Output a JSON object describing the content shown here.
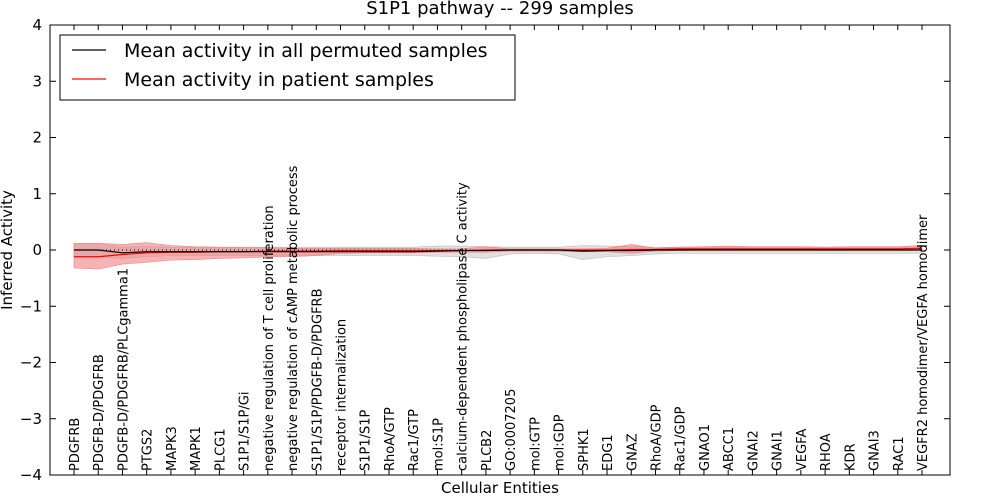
{
  "chart_data": {
    "type": "line",
    "title": "S1P1 pathway -- 299 samples",
    "xlabel": "Cellular Entities",
    "ylabel": "Inferred Activity",
    "ylim": [
      -4,
      4
    ],
    "yticks": [
      -4,
      -3,
      -2,
      -1,
      0,
      1,
      2,
      3,
      4
    ],
    "ytick_labels": [
      "−4",
      "−3",
      "−2",
      "−1",
      "0",
      "1",
      "2",
      "3",
      "4"
    ],
    "legend_position": "top-left",
    "categories": [
      "PDGFRB",
      "PDGFB-D/PDGFRB",
      "PDGFB-D/PDGFRB/PLCgamma1",
      "PTGS2",
      "MAPK3",
      "MAPK1",
      "PLCG1",
      "S1P1/S1P/Gi",
      "negative regulation of T cell proliferation",
      "negative regulation of cAMP metabolic process",
      "S1P1/S1P/PDGFB-D/PDGFRB",
      "receptor internalization",
      "S1P1/S1P",
      "RhoA/GTP",
      "Rac1/GTP",
      "mol:S1P",
      "calcium-dependent phospholipase C activity",
      "PLCB2",
      "GO:0007205",
      "mol:GTP",
      "mol:GDP",
      "SPHK1",
      "EDG1",
      "GNAZ",
      "RhoA/GDP",
      "Rac1/GDP",
      "GNAO1",
      "ABCC1",
      "GNAI2",
      "GNAI1",
      "VEGFA",
      "RHOA",
      "KDR",
      "GNAI3",
      "RAC1",
      "VEGFR2 homodimer/VEGFA homodimer"
    ],
    "series": [
      {
        "name": "Mean activity in all permuted samples",
        "color": "#000000",
        "band_color": "#bbbbbb",
        "values": [
          0.0,
          0.0,
          -0.05,
          -0.03,
          -0.03,
          -0.03,
          -0.03,
          -0.03,
          -0.03,
          -0.03,
          -0.03,
          -0.03,
          -0.03,
          -0.03,
          -0.03,
          -0.02,
          -0.01,
          -0.01,
          0.0,
          0.0,
          0.0,
          -0.02,
          -0.01,
          -0.01,
          0.0,
          0.0,
          0.0,
          0.0,
          0.0,
          0.0,
          0.0,
          0.0,
          0.0,
          0.0,
          0.0,
          0.0
        ],
        "band_upper": [
          0.12,
          0.12,
          0.05,
          0.06,
          0.05,
          0.05,
          0.05,
          0.05,
          0.05,
          0.05,
          0.05,
          0.05,
          0.05,
          0.05,
          0.05,
          0.07,
          0.07,
          0.06,
          0.05,
          0.05,
          0.05,
          0.08,
          0.07,
          0.06,
          0.05,
          0.05,
          0.05,
          0.05,
          0.05,
          0.05,
          0.05,
          0.05,
          0.05,
          0.05,
          0.05,
          0.05
        ],
        "band_lower": [
          -0.12,
          -0.12,
          -0.15,
          -0.12,
          -0.1,
          -0.1,
          -0.1,
          -0.1,
          -0.1,
          -0.1,
          -0.1,
          -0.1,
          -0.1,
          -0.1,
          -0.1,
          -0.11,
          -0.12,
          -0.15,
          -0.07,
          -0.06,
          -0.07,
          -0.17,
          -0.12,
          -0.1,
          -0.07,
          -0.06,
          -0.06,
          -0.06,
          -0.06,
          -0.06,
          -0.06,
          -0.06,
          -0.06,
          -0.06,
          -0.06,
          -0.06
        ]
      },
      {
        "name": "Mean activity in patient samples",
        "color": "#ff0000",
        "band_color": "#f08080",
        "values": [
          -0.12,
          -0.12,
          -0.08,
          -0.05,
          -0.04,
          -0.04,
          -0.03,
          -0.03,
          -0.02,
          -0.02,
          -0.02,
          -0.01,
          -0.01,
          -0.01,
          -0.01,
          -0.01,
          -0.01,
          0.0,
          0.0,
          0.0,
          0.0,
          0.0,
          0.0,
          0.01,
          0.01,
          0.02,
          0.02,
          0.02,
          0.02,
          0.02,
          0.02,
          0.02,
          0.02,
          0.02,
          0.02,
          0.03
        ],
        "band_upper": [
          0.12,
          0.12,
          0.1,
          0.13,
          0.08,
          0.06,
          0.05,
          0.04,
          0.04,
          0.03,
          0.03,
          0.03,
          0.03,
          0.03,
          0.03,
          0.02,
          0.02,
          0.06,
          0.02,
          0.02,
          0.02,
          0.02,
          0.03,
          0.1,
          0.03,
          0.05,
          0.06,
          0.07,
          0.06,
          0.06,
          0.06,
          0.05,
          0.06,
          0.06,
          0.06,
          0.08
        ],
        "band_lower": [
          -0.32,
          -0.34,
          -0.25,
          -0.22,
          -0.18,
          -0.17,
          -0.15,
          -0.14,
          -0.12,
          -0.12,
          -0.1,
          -0.06,
          -0.05,
          -0.05,
          -0.05,
          -0.04,
          -0.04,
          -0.04,
          -0.02,
          -0.02,
          -0.02,
          -0.03,
          -0.03,
          -0.06,
          -0.02,
          -0.01,
          0.0,
          0.0,
          0.0,
          0.0,
          0.0,
          0.0,
          0.0,
          0.0,
          0.0,
          0.0
        ]
      }
    ],
    "reference_line": {
      "value": 0,
      "style": "dotted"
    }
  }
}
